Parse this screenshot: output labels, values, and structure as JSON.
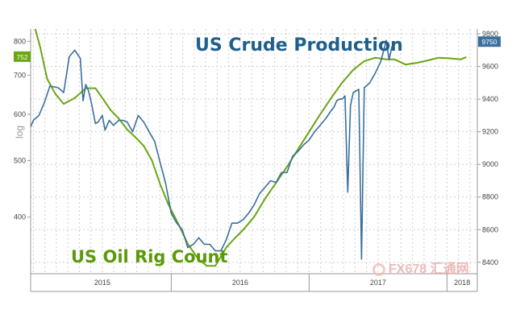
{
  "colors": {
    "production": "#3a6f9e",
    "rigs": "#6aa512",
    "grid": "#cfcfcf",
    "axis_text": "#444444"
  },
  "annotations": {
    "production": "US Crude Production",
    "rigs": "US Oil Rig Count"
  },
  "axis_tag": "log",
  "watermark": "FX678 汇通网",
  "chart_data": {
    "type": "line",
    "x_tick_labels": [
      "2015",
      "2016",
      "2017",
      "2018"
    ],
    "left_axis": {
      "ticks": [
        400,
        500,
        600,
        700,
        800
      ],
      "scale": "log",
      "range": [
        320,
        840
      ],
      "series": "US Oil Rig Count",
      "last_value_badge": "752"
    },
    "right_axis": {
      "ticks": [
        8400,
        8600,
        8800,
        9000,
        9200,
        9400,
        9600,
        9800
      ],
      "scale": "linear",
      "range": [
        8330,
        9830
      ],
      "series": "US Crude Production",
      "last_value_badge": "9750"
    },
    "grid": true,
    "series": [
      {
        "name": "US Oil Rig Count",
        "axis": "left",
        "x": [
          2014.98,
          2015.05,
          2015.1,
          2015.16,
          2015.22,
          2015.3,
          2015.38,
          2015.45,
          2015.5,
          2015.56,
          2015.62,
          2015.68,
          2015.74,
          2015.8,
          2015.86,
          2015.92,
          2015.98,
          2016.05,
          2016.12,
          2016.2,
          2016.26,
          2016.32,
          2016.4,
          2016.46,
          2016.52,
          2016.6,
          2016.68,
          2016.76,
          2016.84,
          2016.92,
          2017.0,
          2017.08,
          2017.16,
          2017.24,
          2017.32,
          2017.4,
          2017.48,
          2017.56,
          2017.62,
          2017.7,
          2017.78,
          2017.86,
          2017.94,
          2018.02,
          2018.1,
          2018.14
        ],
        "values": [
          900,
          780,
          690,
          650,
          625,
          640,
          665,
          665,
          640,
          610,
          590,
          565,
          548,
          530,
          500,
          455,
          420,
          390,
          360,
          338,
          330,
          330,
          355,
          368,
          380,
          400,
          430,
          458,
          488,
          523,
          560,
          600,
          640,
          680,
          715,
          740,
          750,
          745,
          745,
          730,
          735,
          742,
          750,
          748,
          745,
          752
        ]
      },
      {
        "name": "US Crude Production",
        "axis": "right",
        "x": [
          2014.98,
          2015.0,
          2015.04,
          2015.08,
          2015.12,
          2015.18,
          2015.22,
          2015.26,
          2015.3,
          2015.34,
          2015.36,
          2015.38,
          2015.4,
          2015.42,
          2015.45,
          2015.47,
          2015.5,
          2015.52,
          2015.55,
          2015.58,
          2015.62,
          2015.65,
          2015.68,
          2015.72,
          2015.76,
          2015.8,
          2015.84,
          2015.88,
          2015.92,
          2015.96,
          2016.0,
          2016.04,
          2016.08,
          2016.12,
          2016.16,
          2016.2,
          2016.24,
          2016.28,
          2016.32,
          2016.36,
          2016.4,
          2016.44,
          2016.48,
          2016.52,
          2016.56,
          2016.6,
          2016.64,
          2016.68,
          2016.72,
          2016.76,
          2016.8,
          2016.84,
          2016.88,
          2016.92,
          2016.96,
          2017.0,
          2017.04,
          2017.08,
          2017.12,
          2017.16,
          2017.18,
          2017.2,
          2017.22,
          2017.24,
          2017.26,
          2017.28,
          2017.3,
          2017.32,
          2017.34,
          2017.36,
          2017.38,
          2017.4,
          2017.44,
          2017.48,
          2017.52,
          2017.56,
          2017.58,
          2017.6,
          2017.62
        ],
        "values": [
          9230,
          9270,
          9300,
          9380,
          9480,
          9470,
          9440,
          9660,
          9700,
          9650,
          9390,
          9490,
          9450,
          9380,
          9250,
          9260,
          9300,
          9210,
          9270,
          9240,
          9270,
          9270,
          9260,
          9200,
          9300,
          9260,
          9200,
          9140,
          9010,
          8880,
          8700,
          8640,
          8600,
          8490,
          8510,
          8550,
          8510,
          8510,
          8470,
          8470,
          8540,
          8640,
          8640,
          8660,
          8700,
          8750,
          8820,
          8860,
          8900,
          8890,
          8950,
          8950,
          9050,
          9080,
          9120,
          9150,
          9200,
          9240,
          9280,
          9330,
          9350,
          9390,
          9400,
          9400,
          9420,
          8830,
          9360,
          9440,
          9450,
          9460,
          8420,
          9470,
          9500,
          9560,
          9630,
          9760,
          9640,
          9720,
          9750
        ]
      }
    ]
  }
}
